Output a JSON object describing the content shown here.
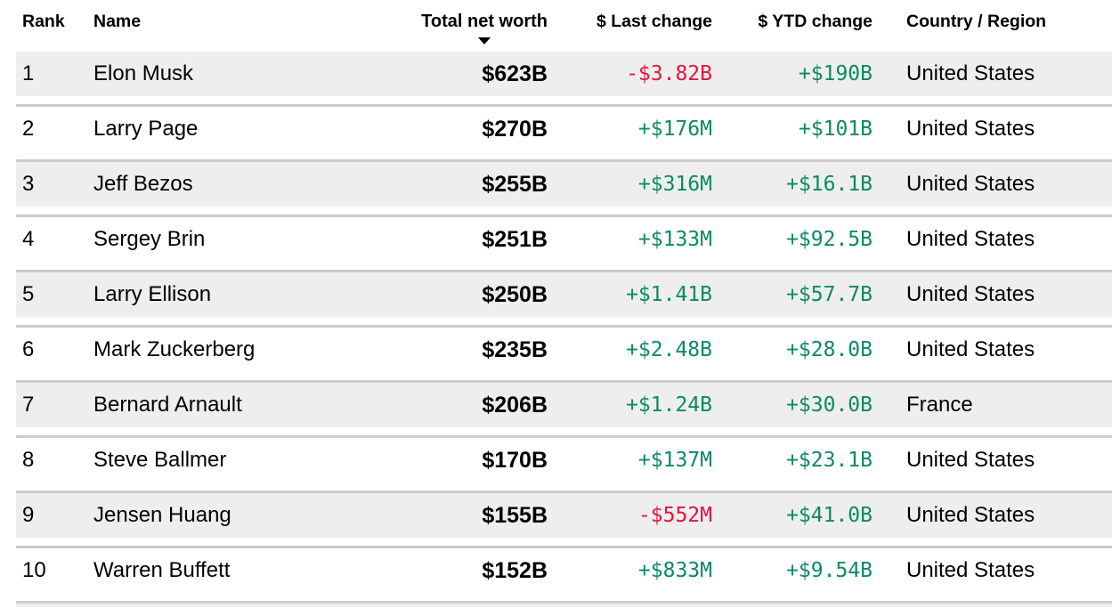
{
  "colors": {
    "positive_change": "#0b8a63",
    "negative_change": "#e4143e",
    "alternate_row_background": "#eeeeee",
    "row_separator": "#cccccc",
    "text": "#000000",
    "page_background": "#ffffff"
  },
  "header": {
    "columns": [
      {
        "key": "rank",
        "label": "Rank"
      },
      {
        "key": "name",
        "label": "Name"
      },
      {
        "key": "net_worth",
        "label": "Total net worth",
        "sorted": "descending"
      },
      {
        "key": "last_change",
        "label": "$ Last change"
      },
      {
        "key": "ytd_change",
        "label": "$ YTD change"
      },
      {
        "key": "country",
        "label": "Country / Region"
      }
    ],
    "sort_icon": "sort-descending-triangle"
  },
  "rows": [
    {
      "rank": "1",
      "name": "Elon Musk",
      "net_worth": "$623B",
      "last_change": "-$3.82B",
      "ytd_change": "+$190B",
      "country": "United States"
    },
    {
      "rank": "2",
      "name": "Larry Page",
      "net_worth": "$270B",
      "last_change": "+$176M",
      "ytd_change": "+$101B",
      "country": "United States"
    },
    {
      "rank": "3",
      "name": "Jeff Bezos",
      "net_worth": "$255B",
      "last_change": "+$316M",
      "ytd_change": "+$16.1B",
      "country": "United States"
    },
    {
      "rank": "4",
      "name": "Sergey Brin",
      "net_worth": "$251B",
      "last_change": "+$133M",
      "ytd_change": "+$92.5B",
      "country": "United States"
    },
    {
      "rank": "5",
      "name": "Larry Ellison",
      "net_worth": "$250B",
      "last_change": "+$1.41B",
      "ytd_change": "+$57.7B",
      "country": "United States"
    },
    {
      "rank": "6",
      "name": "Mark Zuckerberg",
      "net_worth": "$235B",
      "last_change": "+$2.48B",
      "ytd_change": "+$28.0B",
      "country": "United States"
    },
    {
      "rank": "7",
      "name": "Bernard Arnault",
      "net_worth": "$206B",
      "last_change": "+$1.24B",
      "ytd_change": "+$30.0B",
      "country": "France"
    },
    {
      "rank": "8",
      "name": "Steve Ballmer",
      "net_worth": "$170B",
      "last_change": "+$137M",
      "ytd_change": "+$23.1B",
      "country": "United States"
    },
    {
      "rank": "9",
      "name": "Jensen Huang",
      "net_worth": "$155B",
      "last_change": "-$552M",
      "ytd_change": "+$41.0B",
      "country": "United States"
    },
    {
      "rank": "10",
      "name": "Warren Buffett",
      "net_worth": "$152B",
      "last_change": "+$833M",
      "ytd_change": "+$9.54B",
      "country": "United States"
    }
  ]
}
